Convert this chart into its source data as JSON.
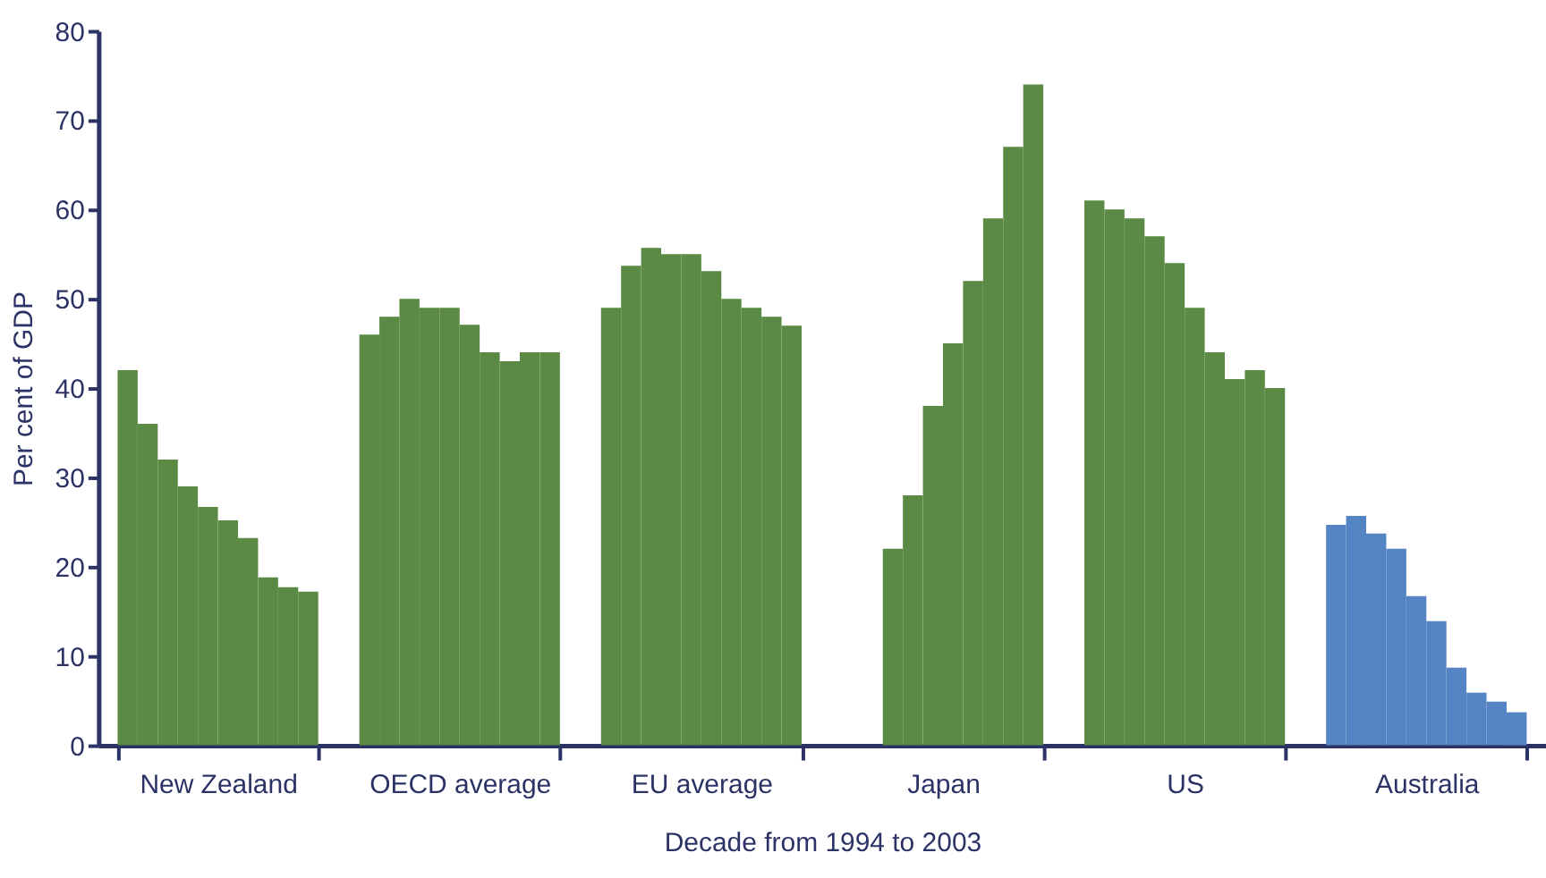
{
  "chart_data": {
    "type": "bar",
    "xlabel": "Decade from 1994 to 2003",
    "ylabel": "Per cent of GDP",
    "categories": [
      "New Zealand",
      "OECD average",
      "EU average",
      "Japan",
      "US",
      "Australia"
    ],
    "series": [
      {
        "colors": [
          "#5a8a43",
          "#5a8a43",
          "#5a8a43",
          "#5a8a43",
          "#5a8a43",
          "#5584c4"
        ],
        "values": [
          42,
          46,
          49,
          null,
          61,
          24.7
        ]
      },
      {
        "colors": [
          "#5a8a43",
          "#5a8a43",
          "#5a8a43",
          "#5a8a43",
          "#5a8a43",
          "#5584c4"
        ],
        "values": [
          36,
          48,
          53.7,
          null,
          60,
          25.7
        ]
      },
      {
        "colors": [
          "#5a8a43",
          "#5a8a43",
          "#5a8a43",
          "#5a8a43",
          "#5a8a43",
          "#5584c4"
        ],
        "values": [
          32,
          50,
          55.7,
          22,
          59,
          23.7
        ]
      },
      {
        "colors": [
          "#5a8a43",
          "#5a8a43",
          "#5a8a43",
          "#5a8a43",
          "#5a8a43",
          "#5584c4"
        ],
        "values": [
          29,
          49,
          55,
          28,
          57,
          22
        ]
      },
      {
        "colors": [
          "#5a8a43",
          "#5a8a43",
          "#5a8a43",
          "#5a8a43",
          "#5a8a43",
          "#5584c4"
        ],
        "values": [
          26.7,
          49,
          55,
          38,
          54,
          16.7
        ]
      },
      {
        "colors": [
          "#5a8a43",
          "#5a8a43",
          "#5a8a43",
          "#5a8a43",
          "#5a8a43",
          "#5584c4"
        ],
        "values": [
          25.2,
          47.1,
          53.1,
          45,
          49,
          13.9
        ]
      },
      {
        "colors": [
          "#5a8a43",
          "#5a8a43",
          "#5a8a43",
          "#5a8a43",
          "#5a8a43",
          "#5584c4"
        ],
        "values": [
          23.2,
          44,
          50,
          52,
          44,
          8.7
        ]
      },
      {
        "colors": [
          "#5a8a43",
          "#5a8a43",
          "#5a8a43",
          "#5a8a43",
          "#5a8a43",
          "#5584c4"
        ],
        "values": [
          18.8,
          43,
          49,
          59,
          41,
          5.9
        ]
      },
      {
        "colors": [
          "#5a8a43",
          "#5a8a43",
          "#5a8a43",
          "#5a8a43",
          "#5a8a43",
          "#5584c4"
        ],
        "values": [
          17.7,
          44,
          48,
          67,
          42,
          4.9
        ]
      },
      {
        "colors": [
          "#5a8a43",
          "#5a8a43",
          "#5a8a43",
          "#5a8a43",
          "#5a8a43",
          "#5584c4"
        ],
        "values": [
          17.2,
          44,
          47,
          74,
          40,
          3.7
        ]
      }
    ],
    "ylim": [
      0,
      80
    ],
    "yticks": [
      0,
      10,
      20,
      30,
      40,
      50,
      60,
      70,
      80
    ],
    "grid": false
  }
}
